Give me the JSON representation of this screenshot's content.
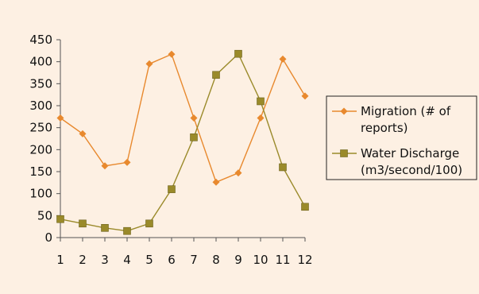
{
  "chart_data": {
    "type": "line",
    "title": "",
    "xlabel": "",
    "ylabel": "",
    "categories": [
      "1",
      "2",
      "3",
      "4",
      "5",
      "6",
      "7",
      "8",
      "9",
      "10",
      "11",
      "12"
    ],
    "ylim": [
      0,
      450
    ],
    "yticks": [
      "0",
      "50",
      "100",
      "150",
      "200",
      "250",
      "300",
      "350",
      "400",
      "450"
    ],
    "grid": false,
    "legend_position": "right",
    "series": [
      {
        "name": "Migration (# of reports)",
        "legend_lines": [
          "Migration (# of",
          "reports)"
        ],
        "color": "#e8892e",
        "marker": "diamond",
        "values": [
          272,
          236,
          163,
          171,
          395,
          417,
          272,
          126,
          147,
          272,
          406,
          322
        ]
      },
      {
        "name": "Water Discharge (m3/second/100)",
        "legend_lines": [
          "Water Discharge",
          "(m3/second/100)"
        ],
        "color": "#9a8a2a",
        "marker": "square",
        "values": [
          42,
          32,
          22,
          15,
          32,
          110,
          228,
          370,
          418,
          310,
          160,
          70
        ]
      }
    ]
  }
}
